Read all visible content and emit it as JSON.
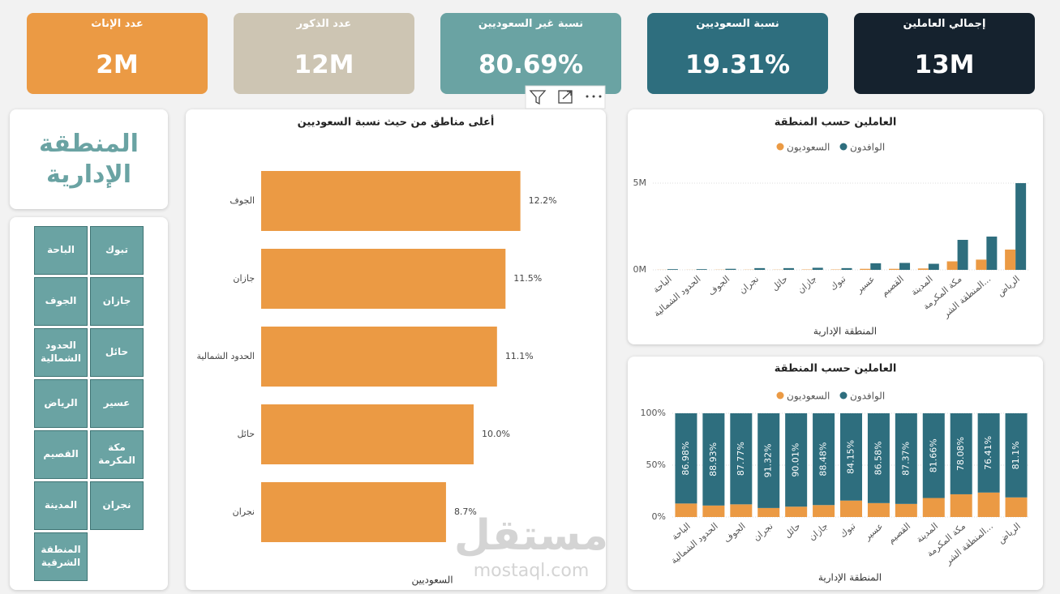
{
  "cards": [
    {
      "title": "إجمالي العاملين",
      "value": "13M",
      "color": "#15222e"
    },
    {
      "title": "نسبة السعوديين",
      "value": "19.31%",
      "color": "#2e6e7e"
    },
    {
      "title": "نسبة غير السعوديين",
      "value": "80.69%",
      "color": "#6aa3a3"
    },
    {
      "title": "عدد الذكور",
      "value": "12M",
      "color": "#cdc5b3"
    },
    {
      "title": "عدد الإناث",
      "value": "2M",
      "color": "#eb9a44"
    }
  ],
  "slicer": {
    "title": "المنطقة الإدارية",
    "items": [
      "الباحة",
      "تبوك",
      "الجوف",
      "جازان",
      "الحدود الشمالية",
      "حائل",
      "الرياض",
      "عسير",
      "القصيم",
      "مكة المكرمة",
      "المدينة",
      "نجران",
      "المنطقة الشرقية"
    ]
  },
  "watermark": [
    "مستقل",
    "mostaql.com"
  ],
  "chart_data": [
    {
      "type": "hbar",
      "title": "أعلى مناطق من حيث نسبة السعوديين",
      "xlabel": "السعوديين",
      "categories": [
        "الجوف",
        "جازان",
        "الحدود الشمالية",
        "حائل",
        "نجران"
      ],
      "values": [
        12.2,
        11.5,
        11.1,
        10.0,
        8.7
      ],
      "value_labels": [
        "12.2%",
        "11.5%",
        "11.1%",
        "10.0%",
        "8.7%"
      ],
      "color": "#eb9a44",
      "xlim": [
        0,
        15
      ]
    },
    {
      "type": "bar",
      "title": "العاملين حسب المنطقة",
      "xlabel": "المنطقة الإدارية",
      "categories": [
        "الباحة",
        "الحدود الشمالية",
        "الجوف",
        "نجران",
        "حائل",
        "جازان",
        "تبوك",
        "عسير",
        "القصيم",
        "المدينة",
        "مكة المكرمة",
        "المنطقة الشر...",
        "الرياض"
      ],
      "series": [
        {
          "name": "الوافدون",
          "color": "#2e6e7e",
          "values": [
            0.04,
            0.04,
            0.06,
            0.1,
            0.1,
            0.12,
            0.1,
            0.38,
            0.4,
            0.35,
            1.73,
            1.92,
            5.0
          ]
        },
        {
          "name": "السعوديون",
          "color": "#eb9a44",
          "values": [
            0.006,
            0.005,
            0.01,
            0.01,
            0.01,
            0.02,
            0.02,
            0.06,
            0.06,
            0.08,
            0.49,
            0.59,
            1.17
          ]
        }
      ],
      "ylim": [
        0,
        5.5
      ],
      "yticks": [
        {
          "value": 0,
          "label": "0M"
        },
        {
          "value": 5,
          "label": "5M"
        }
      ],
      "grid": true
    },
    {
      "type": "stacked_bar",
      "title": "العاملين حسب المنطقة",
      "xlabel": "المنطقة الإدارية",
      "categories": [
        "الباحة",
        "الحدود الشمالية",
        "الجوف",
        "نجران",
        "حائل",
        "جازان",
        "تبوك",
        "عسير",
        "القصيم",
        "المدينة",
        "مكة المكرمة",
        "المنطقة الشر...",
        "الرياض"
      ],
      "series": [
        {
          "name": "الوافدون",
          "color": "#2e6e7e",
          "values": [
            86.98,
            88.93,
            87.77,
            91.32,
            90.01,
            88.48,
            84.15,
            86.58,
            87.37,
            81.66,
            78.08,
            76.41,
            81.1
          ],
          "value_labels": [
            "86.98%",
            "88.93%",
            "87.77%",
            "91.32%",
            "90.01%",
            "88.48%",
            "84.15%",
            "86.58%",
            "87.37%",
            "81.66%",
            "78.08%",
            "76.41%",
            "81.1%"
          ]
        },
        {
          "name": "السعوديون",
          "color": "#eb9a44",
          "values": [
            13.02,
            11.07,
            12.23,
            8.68,
            9.99,
            11.52,
            15.85,
            13.42,
            12.63,
            18.34,
            21.92,
            23.59,
            18.9
          ]
        }
      ],
      "ylim": [
        0,
        100
      ],
      "yticks": [
        {
          "value": 0,
          "label": "0%"
        },
        {
          "value": 50,
          "label": "50%"
        },
        {
          "value": 100,
          "label": "100%"
        }
      ],
      "grid": true
    }
  ]
}
